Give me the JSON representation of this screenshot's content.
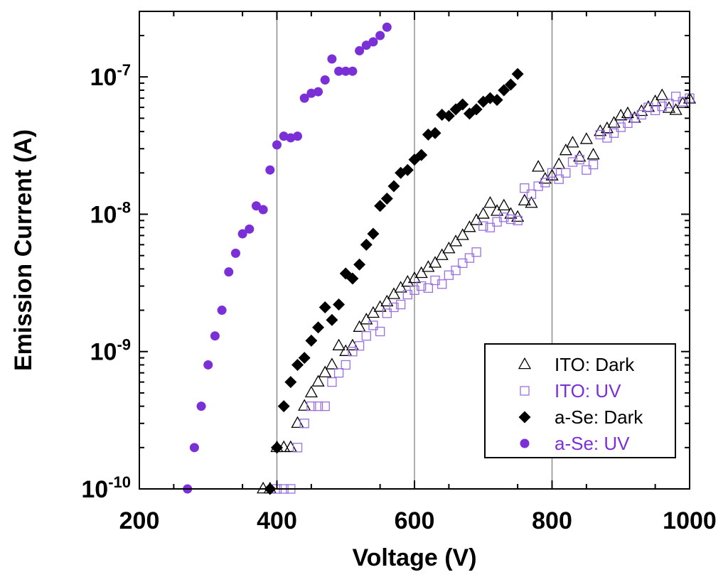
{
  "chart_data": {
    "type": "scatter",
    "xlabel": "Voltage (V)",
    "ylabel": "Emission Current (A)",
    "xlim": [
      200,
      1000
    ],
    "ylim": [
      1e-10,
      3e-07
    ],
    "yscale": "log",
    "x_ticks": [
      200,
      400,
      600,
      800,
      1000
    ],
    "x_tick_labels": [
      "200",
      "400",
      "600",
      "800",
      "1000"
    ],
    "y_ticks": [
      {
        "value": 1e-10,
        "base": "10",
        "exp": "-10"
      },
      {
        "value": 1e-09,
        "base": "10",
        "exp": "-9"
      },
      {
        "value": 1e-08,
        "base": "10",
        "exp": "-8"
      },
      {
        "value": 1e-07,
        "base": "10",
        "exp": "-7"
      }
    ],
    "grid": "vertical lines at 400, 600, 800",
    "legend_position": "bottom-right",
    "colors": {
      "dark": "#000000",
      "uv": "#7b2fd6",
      "uv_square": "#9b6fe0"
    },
    "series": [
      {
        "name": "ITO: Dark",
        "marker": "triangle-open",
        "color": "#000000",
        "x": [
          380,
          390,
          400,
          410,
          420,
          430,
          440,
          450,
          460,
          470,
          480,
          490,
          500,
          510,
          520,
          530,
          540,
          550,
          560,
          570,
          580,
          590,
          600,
          610,
          620,
          630,
          640,
          650,
          660,
          670,
          680,
          690,
          700,
          710,
          720,
          730,
          740,
          750,
          760,
          770,
          780,
          790,
          800,
          810,
          820,
          830,
          840,
          850,
          860,
          870,
          880,
          890,
          900,
          910,
          920,
          930,
          940,
          950,
          960,
          970,
          980,
          990,
          1000
        ],
        "y": [
          1e-10,
          1e-10,
          2e-10,
          2e-10,
          2e-10,
          3e-10,
          4e-10,
          5e-10,
          6e-10,
          7e-10,
          8e-10,
          1.1e-09,
          1e-09,
          1.1e-09,
          1.5e-09,
          1.7e-09,
          1.9e-09,
          2.1e-09,
          2.3e-09,
          2.6e-09,
          2.9e-09,
          3.2e-09,
          3.4e-09,
          3.7e-09,
          4.1e-09,
          4.4e-09,
          5e-09,
          5.6e-09,
          6.3e-09,
          7e-09,
          8e-09,
          9e-09,
          1e-08,
          1.2e-08,
          1.05e-08,
          1.15e-08,
          1e-08,
          9.5e-09,
          1.25e-08,
          1.2e-08,
          2.2e-08,
          1.8e-08,
          1.9e-08,
          2.3e-08,
          2.9e-08,
          3.3e-08,
          2.6e-08,
          3.5e-08,
          2.7e-08,
          4e-08,
          4.2e-08,
          4.6e-08,
          5.2e-08,
          5.4e-08,
          5e-08,
          5.6e-08,
          6e-08,
          6.6e-08,
          7.3e-08,
          5.9e-08,
          5.7e-08,
          6.4e-08,
          6.9e-08
        ]
      },
      {
        "name": "ITO: UV",
        "marker": "square-open",
        "color": "#9b6fe0",
        "x": [
          400,
          410,
          420,
          430,
          440,
          450,
          460,
          470,
          480,
          490,
          500,
          510,
          520,
          530,
          540,
          550,
          560,
          570,
          580,
          590,
          600,
          610,
          620,
          630,
          640,
          650,
          660,
          670,
          680,
          690,
          700,
          710,
          720,
          730,
          740,
          750,
          760,
          770,
          780,
          790,
          800,
          810,
          820,
          830,
          840,
          850,
          860,
          870,
          880,
          890,
          900,
          910,
          920,
          930,
          940,
          950,
          960,
          970,
          980,
          990,
          1000
        ],
        "y": [
          1e-10,
          1e-10,
          1e-10,
          2e-10,
          3e-10,
          4e-10,
          4e-10,
          4e-10,
          6e-10,
          7e-10,
          8e-10,
          1e-09,
          1.1e-09,
          1.3e-09,
          1.55e-09,
          1.4e-09,
          1.9e-09,
          2.1e-09,
          2.2e-09,
          2.6e-09,
          2.8e-09,
          3e-09,
          2.9e-09,
          3.3e-09,
          3.1e-09,
          3.6e-09,
          3.9e-09,
          4.4e-09,
          4.8e-09,
          5.3e-09,
          8.2e-09,
          8e-09,
          8.8e-09,
          9.5e-09,
          9.2e-09,
          9e-09,
          1.55e-08,
          1.4e-08,
          1.6e-08,
          1.7e-08,
          2e-08,
          1.8e-08,
          2e-08,
          2.4e-08,
          2.5e-08,
          2.1e-08,
          2.3e-08,
          3.8e-08,
          3.6e-08,
          3.9e-08,
          4.3e-08,
          4.6e-08,
          5e-08,
          5.3e-08,
          6e-08,
          5.7e-08,
          6.1e-08,
          6.4e-08,
          7.2e-08,
          6.6e-08,
          7e-08
        ]
      },
      {
        "name": "a-Se: Dark",
        "marker": "diamond-filled",
        "color": "#000000",
        "x": [
          390,
          400,
          410,
          420,
          430,
          440,
          450,
          460,
          470,
          480,
          490,
          500,
          510,
          520,
          530,
          540,
          550,
          560,
          570,
          580,
          590,
          600,
          610,
          620,
          630,
          640,
          650,
          660,
          670,
          680,
          690,
          700,
          710,
          720,
          730,
          740,
          750
        ],
        "y": [
          1e-10,
          2e-10,
          4e-10,
          6e-10,
          8e-10,
          9e-10,
          1.2e-09,
          1.5e-09,
          2.1e-09,
          1.7e-09,
          2.2e-09,
          3.7e-09,
          3.4e-09,
          4.3e-09,
          6e-09,
          7.2e-09,
          1.15e-08,
          1.3e-08,
          1.6e-08,
          2e-08,
          2.1e-08,
          2.5e-08,
          2.7e-08,
          3.8e-08,
          3.9e-08,
          5.3e-08,
          5.2e-08,
          5.8e-08,
          6.3e-08,
          5.4e-08,
          5.8e-08,
          6.6e-08,
          7e-08,
          6.8e-08,
          8e-08,
          8.8e-08,
          1.05e-07
        ]
      },
      {
        "name": "a-Se: UV",
        "marker": "circle-filled",
        "color": "#7b2fd6",
        "x": [
          270,
          280,
          290,
          300,
          310,
          320,
          330,
          340,
          350,
          360,
          370,
          380,
          390,
          400,
          410,
          420,
          430,
          440,
          450,
          460,
          470,
          480,
          490,
          500,
          510,
          520,
          530,
          540,
          550,
          560
        ],
        "y": [
          1e-10,
          2e-10,
          4e-10,
          8e-10,
          1.3e-09,
          2e-09,
          3.8e-09,
          5.2e-09,
          7.2e-09,
          7.8e-09,
          1.15e-08,
          1.08e-08,
          2.1e-08,
          3.2e-08,
          3.7e-08,
          3.6e-08,
          3.7e-08,
          7e-08,
          7.6e-08,
          7.8e-08,
          9.5e-08,
          1.35e-07,
          1.1e-07,
          1.1e-07,
          1.1e-07,
          1.55e-07,
          1.7e-07,
          1.8e-07,
          2e-07,
          2.3e-07
        ]
      }
    ]
  }
}
